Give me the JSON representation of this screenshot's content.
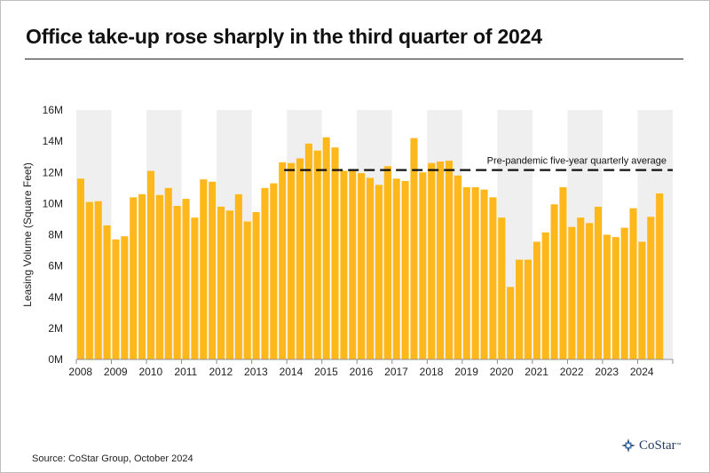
{
  "title": "Office take-up rose sharply in the third quarter of 2024",
  "source": "Source: CoStar Group, October 2024",
  "logo_text": "CoStar",
  "logo_tm": "™",
  "colors": {
    "bar": "#FFB81C",
    "band": "#EFEFEF",
    "average_line": "#111111"
  },
  "chart_data": {
    "type": "bar",
    "title": "Office take-up rose sharply in the third quarter of 2024",
    "ylabel": "Leasing Volume (Square Feet)",
    "xlabel": "",
    "ylim": [
      0,
      16000000
    ],
    "ytick_labels": [
      "0M",
      "2M",
      "4M",
      "6M",
      "8M",
      "10M",
      "12M",
      "14M",
      "16M"
    ],
    "ytick_values": [
      0,
      2000000,
      4000000,
      6000000,
      8000000,
      10000000,
      12000000,
      14000000,
      16000000
    ],
    "years": [
      "2008",
      "2009",
      "2010",
      "2011",
      "2012",
      "2013",
      "2014",
      "2015",
      "2016",
      "2017",
      "2018",
      "2019",
      "2020",
      "2021",
      "2022",
      "2023",
      "2024"
    ],
    "quarters_per_year": 4,
    "grid": false,
    "alternating_year_bands": true,
    "series": [
      {
        "values": [
          11600000,
          10100000,
          10150000,
          8600000,
          7700000,
          7900000,
          10400000,
          10600000,
          12100000,
          10550000,
          11000000,
          9850000,
          10300000,
          9100000,
          11550000,
          11400000,
          9800000,
          9550000,
          10600000,
          8850000,
          9450000,
          11000000,
          11300000,
          12650000,
          12600000,
          12900000,
          13850000,
          13400000,
          14250000,
          13600000,
          12100000,
          12100000,
          11950000,
          11650000,
          11200000,
          12400000,
          11600000,
          11450000,
          14200000,
          12000000,
          12600000,
          12700000,
          12750000,
          11800000,
          11050000,
          11050000,
          10900000,
          10400000,
          9100000,
          4650000,
          6400000,
          6400000,
          7550000,
          8150000,
          9950000,
          11050000,
          8500000,
          9100000,
          8750000,
          9800000,
          8000000,
          7850000,
          8450000,
          9700000,
          7550000,
          9150000,
          10650000
        ]
      }
    ],
    "reference_line": {
      "label": "Pre-pandemic five-year quarterly average",
      "value": 12150000,
      "start_year": "2014"
    }
  }
}
